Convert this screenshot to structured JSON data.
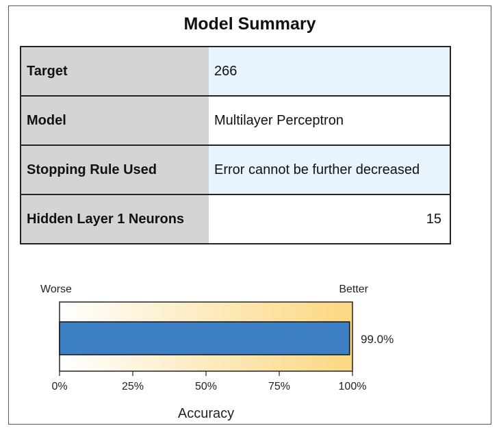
{
  "title": "Model Summary",
  "rows": [
    {
      "label": "Target",
      "value": "266"
    },
    {
      "label": "Model",
      "value": "Multilayer Perceptron"
    },
    {
      "label": "Stopping Rule Used",
      "value": "Error cannot be further decreased"
    },
    {
      "label": "Hidden Layer 1 Neurons",
      "value": "15"
    }
  ],
  "chart_data": {
    "type": "bar",
    "orientation": "horizontal",
    "categories": [
      "Accuracy"
    ],
    "values": [
      99.0
    ],
    "value_label": "99.0%",
    "xlabel": "Accuracy",
    "xlim": [
      0,
      100
    ],
    "xticks": [
      "0%",
      "25%",
      "50%",
      "75%",
      "100%"
    ],
    "scale_left_label": "Worse",
    "scale_right_label": "Better",
    "colors": {
      "bar": "#3d7fc4",
      "gradient_start": "#ffffff",
      "gradient_end": "#fbd780"
    }
  }
}
